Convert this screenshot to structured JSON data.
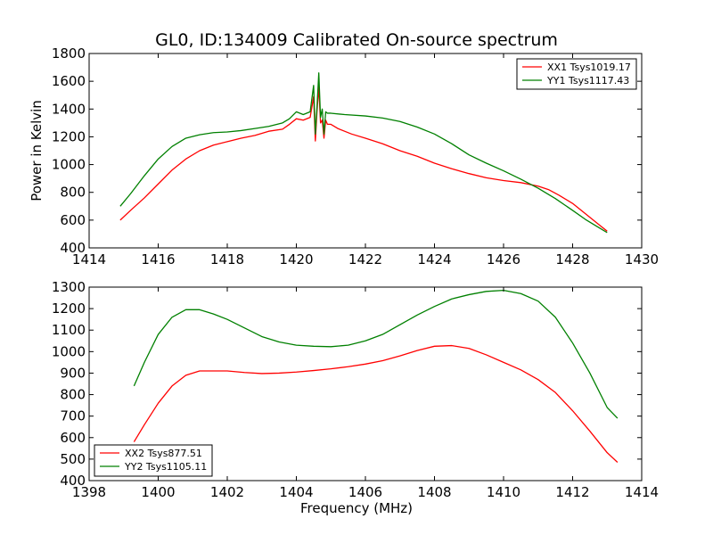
{
  "chart_data": [
    {
      "type": "line",
      "title": "GL0, ID:134009 Calibrated On-source spectrum",
      "xlabel": "",
      "ylabel": "Power in Kelvin",
      "xlim": [
        1414,
        1430
      ],
      "ylim": [
        400,
        1800
      ],
      "xticks": [
        1414,
        1416,
        1418,
        1420,
        1422,
        1424,
        1426,
        1428,
        1430
      ],
      "yticks": [
        400,
        600,
        800,
        1000,
        1200,
        1400,
        1600,
        1800
      ],
      "grid": false,
      "legend": "top-right",
      "series": [
        {
          "name": "XX1 Tsys1019.17",
          "color": "#ff0000",
          "x": [
            1414.9,
            1415.2,
            1415.6,
            1416.0,
            1416.4,
            1416.8,
            1417.2,
            1417.6,
            1418.0,
            1418.4,
            1418.8,
            1419.2,
            1419.6,
            1419.8,
            1420.0,
            1420.2,
            1420.4,
            1420.5,
            1420.55,
            1420.6,
            1420.65,
            1420.7,
            1420.75,
            1420.8,
            1420.85,
            1420.9,
            1421.0,
            1421.2,
            1421.6,
            1422.0,
            1422.5,
            1423.0,
            1423.5,
            1424.0,
            1424.5,
            1425.0,
            1425.5,
            1426.0,
            1426.5,
            1427.0,
            1427.3,
            1427.6,
            1428.0,
            1428.4,
            1428.8,
            1429.0
          ],
          "y": [
            600,
            670,
            760,
            860,
            960,
            1040,
            1100,
            1140,
            1165,
            1190,
            1210,
            1240,
            1255,
            1290,
            1330,
            1320,
            1340,
            1490,
            1170,
            1390,
            1560,
            1300,
            1320,
            1190,
            1320,
            1290,
            1290,
            1260,
            1220,
            1190,
            1150,
            1100,
            1060,
            1010,
            970,
            935,
            905,
            885,
            870,
            845,
            820,
            780,
            720,
            640,
            560,
            520
          ]
        },
        {
          "name": "YY1 Tsys1117.43",
          "color": "#008000",
          "x": [
            1414.9,
            1415.2,
            1415.6,
            1416.0,
            1416.4,
            1416.8,
            1417.2,
            1417.6,
            1418.0,
            1418.4,
            1418.8,
            1419.2,
            1419.6,
            1419.8,
            1420.0,
            1420.2,
            1420.4,
            1420.5,
            1420.55,
            1420.6,
            1420.65,
            1420.7,
            1420.75,
            1420.8,
            1420.85,
            1420.9,
            1421.0,
            1421.4,
            1422.0,
            1422.5,
            1423.0,
            1423.5,
            1424.0,
            1424.5,
            1425.0,
            1425.5,
            1426.0,
            1426.5,
            1427.0,
            1427.5,
            1428.0,
            1428.4,
            1428.8,
            1429.0
          ],
          "y": [
            700,
            790,
            920,
            1040,
            1130,
            1190,
            1215,
            1230,
            1235,
            1245,
            1260,
            1275,
            1300,
            1330,
            1380,
            1360,
            1380,
            1570,
            1220,
            1420,
            1660,
            1340,
            1400,
            1220,
            1380,
            1370,
            1370,
            1360,
            1350,
            1335,
            1310,
            1270,
            1220,
            1150,
            1070,
            1010,
            955,
            895,
            830,
            755,
            670,
            600,
            540,
            510
          ]
        }
      ]
    },
    {
      "type": "line",
      "title": "",
      "xlabel": "Frequency (MHz)",
      "ylabel": "",
      "xlim": [
        1398,
        1414
      ],
      "ylim": [
        400,
        1300
      ],
      "xticks": [
        1398,
        1400,
        1402,
        1404,
        1406,
        1408,
        1410,
        1412,
        1414
      ],
      "yticks": [
        400,
        500,
        600,
        700,
        800,
        900,
        1000,
        1100,
        1200,
        1300
      ],
      "grid": false,
      "legend": "bottom-left",
      "series": [
        {
          "name": "XX2 Tsys877.51",
          "color": "#ff0000",
          "x": [
            1399.3,
            1399.6,
            1400.0,
            1400.4,
            1400.8,
            1401.2,
            1401.6,
            1402.0,
            1402.5,
            1403.0,
            1403.5,
            1404.0,
            1404.5,
            1405.0,
            1405.5,
            1406.0,
            1406.5,
            1407.0,
            1407.5,
            1408.0,
            1408.5,
            1409.0,
            1409.5,
            1410.0,
            1410.5,
            1411.0,
            1411.5,
            1412.0,
            1412.5,
            1413.0,
            1413.3
          ],
          "y": [
            580,
            660,
            760,
            840,
            890,
            910,
            910,
            910,
            903,
            898,
            900,
            905,
            912,
            920,
            930,
            942,
            958,
            980,
            1005,
            1025,
            1028,
            1015,
            985,
            950,
            915,
            870,
            810,
            725,
            630,
            530,
            485
          ]
        },
        {
          "name": "YY2 Tsys1105.11",
          "color": "#008000",
          "x": [
            1399.3,
            1399.6,
            1400.0,
            1400.4,
            1400.8,
            1401.2,
            1401.6,
            1402.0,
            1402.5,
            1403.0,
            1403.5,
            1404.0,
            1404.5,
            1405.0,
            1405.5,
            1406.0,
            1406.5,
            1407.0,
            1407.5,
            1408.0,
            1408.5,
            1409.0,
            1409.5,
            1410.0,
            1410.5,
            1411.0,
            1411.5,
            1412.0,
            1412.5,
            1413.0,
            1413.3
          ],
          "y": [
            840,
            950,
            1080,
            1160,
            1195,
            1195,
            1175,
            1150,
            1110,
            1070,
            1045,
            1030,
            1025,
            1023,
            1030,
            1050,
            1080,
            1125,
            1170,
            1210,
            1245,
            1265,
            1280,
            1285,
            1270,
            1235,
            1160,
            1040,
            900,
            740,
            690
          ]
        }
      ]
    }
  ]
}
